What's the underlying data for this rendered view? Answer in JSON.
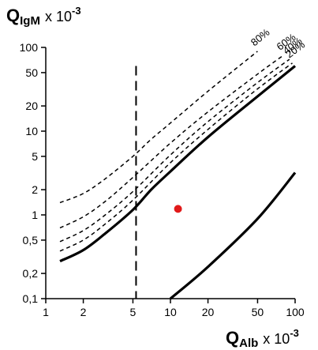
{
  "chart_data": {
    "type": "line",
    "y_title": {
      "main": "Q",
      "sub": "IgM",
      "mult": "x 10",
      "exp": "-3"
    },
    "x_title": {
      "main": "Q",
      "sub": "Alb",
      "mult": "x 10",
      "exp": "-3"
    },
    "x_scale": "log",
    "y_scale": "log",
    "xlim": [
      1,
      100
    ],
    "ylim": [
      0.1,
      100
    ],
    "x_ticks": [
      {
        "v": 1,
        "label": "1"
      },
      {
        "v": 2,
        "label": "2"
      },
      {
        "v": 5,
        "label": "5"
      },
      {
        "v": 10,
        "label": "10"
      },
      {
        "v": 20,
        "label": "20"
      },
      {
        "v": 50,
        "label": "50"
      },
      {
        "v": 100,
        "label": "100"
      }
    ],
    "y_ticks": [
      {
        "v": 0.1,
        "label": "0,1"
      },
      {
        "v": 0.2,
        "label": "0,2"
      },
      {
        "v": 0.5,
        "label": "0,5"
      },
      {
        "v": 1,
        "label": "1"
      },
      {
        "v": 2,
        "label": "2"
      },
      {
        "v": 5,
        "label": "5"
      },
      {
        "v": 10,
        "label": "10"
      },
      {
        "v": 20,
        "label": "20"
      },
      {
        "v": 50,
        "label": "50"
      },
      {
        "v": 100,
        "label": "100"
      }
    ],
    "series": [
      {
        "name": "80%",
        "style": "dashed",
        "x": [
          1.3,
          2,
          3,
          5,
          7,
          10,
          20,
          50
        ],
        "y": [
          1.4,
          1.8,
          2.7,
          5.0,
          8.0,
          12.5,
          30,
          90
        ]
      },
      {
        "name": "60%",
        "style": "dashed",
        "x": [
          1.3,
          2,
          3,
          5,
          10,
          20,
          50,
          80
        ],
        "y": [
          0.7,
          0.95,
          1.45,
          2.8,
          7.2,
          17,
          48,
          80
        ]
      },
      {
        "name": "40%",
        "style": "dashed",
        "x": [
          1.3,
          2,
          3,
          5,
          10,
          20,
          50,
          90
        ],
        "y": [
          0.48,
          0.65,
          1.0,
          1.9,
          5.2,
          13,
          38,
          72
        ]
      },
      {
        "name": "20%",
        "style": "dashed",
        "x": [
          1.3,
          2,
          3,
          5,
          10,
          20,
          50,
          95
        ],
        "y": [
          0.37,
          0.5,
          0.78,
          1.5,
          4.2,
          10.5,
          32,
          65
        ]
      },
      {
        "name": "",
        "style": "solid",
        "x": [
          1.3,
          2,
          3,
          5,
          7,
          10,
          20,
          50,
          100
        ],
        "y": [
          0.28,
          0.38,
          0.6,
          1.15,
          2.0,
          3.3,
          8.5,
          26,
          60
        ]
      },
      {
        "name": "",
        "style": "solid",
        "x": [
          10,
          20,
          50,
          100
        ],
        "y": [
          0.1,
          0.24,
          0.9,
          3.2
        ]
      }
    ],
    "vline": {
      "x": 5.3,
      "style": "dashed"
    },
    "points": [
      {
        "x": 11.5,
        "y": 1.18,
        "color": "#e11a1a"
      }
    ]
  }
}
